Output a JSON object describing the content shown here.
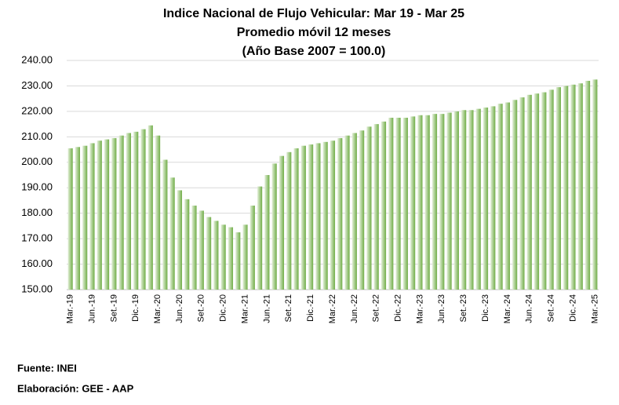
{
  "chart_data": {
    "type": "bar",
    "title": [
      "Indice Nacional  de Flujo Vehicular: Mar 19 - Mar 25",
      "Promedio móvil 12 meses",
      "(Año Base 2007 = 100.0)"
    ],
    "categories": [
      "Mar.-19",
      null,
      null,
      "Jun.-19",
      null,
      null,
      "Set.-19",
      null,
      null,
      "Dic.-19",
      null,
      null,
      "Mar.-20",
      null,
      null,
      "Jun.-20",
      null,
      null,
      "Set.-20",
      null,
      null,
      "Dic.-20",
      null,
      null,
      "Mar.-21",
      null,
      null,
      "Jun.-21",
      null,
      null,
      "Set.-21",
      null,
      null,
      "Dic.-21",
      null,
      null,
      "Mar.-22",
      null,
      null,
      "Jun.-22",
      null,
      null,
      "Set.-22",
      null,
      null,
      "Dic.-22",
      null,
      null,
      "Mar.-23",
      null,
      null,
      "Jun.-23",
      null,
      null,
      "Set.-23",
      null,
      null,
      "Dic.-23",
      null,
      null,
      "Mar.-24",
      null,
      null,
      "Jun.-24",
      null,
      null,
      "Set.-24",
      null,
      null,
      "Dic.-24",
      null,
      null,
      "Mar.-25"
    ],
    "values": [
      205.5,
      206,
      206.5,
      207.5,
      208.5,
      209,
      209.5,
      210.5,
      211.5,
      212,
      213,
      214.5,
      210.5,
      201,
      194,
      189,
      185.5,
      183,
      181,
      178.5,
      177,
      175.5,
      174.5,
      172.5,
      175.5,
      183,
      190.5,
      195,
      199.5,
      202.5,
      204,
      205.5,
      206.5,
      207,
      207.5,
      208,
      208.5,
      209.5,
      210.5,
      211.5,
      212.5,
      214,
      215,
      216,
      217.5,
      217.5,
      217.5,
      218,
      218.5,
      218.5,
      219,
      219,
      219.5,
      220,
      220.5,
      220.5,
      221,
      221.5,
      222,
      223,
      223.5,
      224.5,
      225.5,
      226.5,
      227,
      227.5,
      228.5,
      229.5,
      230,
      230.5,
      231,
      232,
      232.5
    ],
    "color": "#70ad47",
    "ylim": [
      150,
      240
    ],
    "yticks": [
      {
        "value": 150,
        "label": "150.00"
      },
      {
        "value": 160,
        "label": "160.00"
      },
      {
        "value": 170,
        "label": "170.00"
      },
      {
        "value": 180,
        "label": "180.00"
      },
      {
        "value": 190,
        "label": "190.00"
      },
      {
        "value": 200,
        "label": "200.00"
      },
      {
        "value": 210,
        "label": "210.00"
      },
      {
        "value": 220,
        "label": "220.00"
      },
      {
        "value": 230,
        "label": "230.00"
      },
      {
        "value": 240,
        "label": "240.00"
      }
    ],
    "grid": true
  },
  "footer": [
    "Fuente: INEI",
    "Elaboración: GEE - AAP"
  ]
}
